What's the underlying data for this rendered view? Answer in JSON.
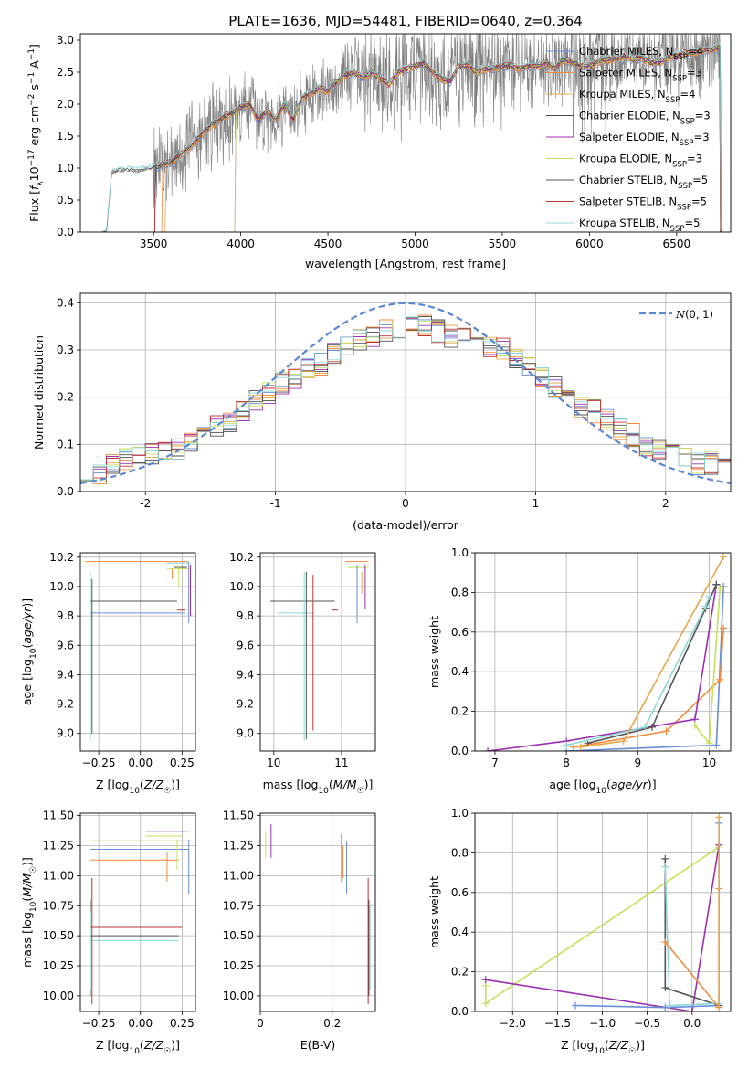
{
  "figure_title": "PLATE=1636, MJD=54481, FIBERID=0640, z=0.364",
  "colors": {
    "models": [
      "#6a8fd6",
      "#f08a3c",
      "#e6a84a",
      "#4a4a4a",
      "#9b30b0",
      "#c6e05a",
      "#555555",
      "#c03030",
      "#8fd6d6"
    ],
    "data": "#7f7f7f",
    "gauss": "#5b87d6"
  },
  "chart_data": [
    {
      "id": "spectrum",
      "type": "line",
      "title": "PLATE=1636, MJD=54481, FIBERID=0640, z=0.364",
      "xlabel": "wavelength [Angstrom, rest frame]",
      "ylabel": "Flux [f_λ 10^-17 erg cm^-2 s^-1 A^-1]",
      "xlim": [
        3080,
        6810
      ],
      "ylim": [
        0,
        3.1
      ],
      "xticks": [
        3500,
        4000,
        4500,
        5000,
        5500,
        6000,
        6500
      ],
      "yticks": [
        0.0,
        0.5,
        1.0,
        1.5,
        2.0,
        2.5,
        3.0
      ],
      "legend_position": "top-right",
      "legend": [
        "Chabrier MILES, N_SSP=4",
        "Salpeter MILES, N_SSP=3",
        "Kroupa MILES, N_SSP=4",
        "Chabrier ELODIE, N_SSP=3",
        "Salpeter ELODIE, N_SSP=3",
        "Kroupa ELODIE, N_SSP=3",
        "Chabrier STELIB, N_SSP=5",
        "Salpeter STELIB, N_SSP=5",
        "Kroupa STELIB, N_SSP=5"
      ],
      "model_continuum": {
        "x": [
          3200,
          3230,
          3260,
          3300,
          3350,
          3400,
          3450,
          3500,
          3550,
          3600,
          3650,
          3700,
          3750,
          3800,
          3850,
          3900,
          3950,
          4000,
          4050,
          4100,
          4150,
          4200,
          4250,
          4300,
          4350,
          4400,
          4450,
          4500,
          4550,
          4600,
          4650,
          4700,
          4750,
          4800,
          4850,
          4900,
          4950,
          5000,
          5050,
          5100,
          5150,
          5200,
          5250,
          5300,
          5350,
          5400,
          5450,
          5500,
          5550,
          5600,
          5650,
          5700,
          5750,
          5800,
          5850,
          5900,
          5950,
          6000,
          6050,
          6100,
          6150,
          6200,
          6250,
          6300,
          6350,
          6400,
          6450,
          6500,
          6550,
          6600,
          6650,
          6700,
          6750
        ],
        "y": [
          0.0,
          0.0,
          0.92,
          0.95,
          0.96,
          0.95,
          0.97,
          1.0,
          1.05,
          1.1,
          1.2,
          1.3,
          1.45,
          1.6,
          1.7,
          1.8,
          1.85,
          1.95,
          2.0,
          1.75,
          1.9,
          1.75,
          2.0,
          1.75,
          2.1,
          2.15,
          2.25,
          2.2,
          2.35,
          2.45,
          2.5,
          2.4,
          2.5,
          2.4,
          2.3,
          2.5,
          2.55,
          2.6,
          2.65,
          2.5,
          2.4,
          2.35,
          2.6,
          2.6,
          2.5,
          2.55,
          2.55,
          2.6,
          2.6,
          2.55,
          2.6,
          2.6,
          2.65,
          2.55,
          2.7,
          2.65,
          2.6,
          2.6,
          2.65,
          2.7,
          2.7,
          2.75,
          2.7,
          2.72,
          2.65,
          2.65,
          2.72,
          2.75,
          2.8,
          2.8,
          2.85,
          2.85,
          2.9
        ]
      }
    },
    {
      "id": "residuals",
      "type": "line",
      "xlabel": "(data-model)/error",
      "ylabel": "Normed distribution",
      "xlim": [
        -2.5,
        2.5
      ],
      "ylim": [
        0,
        0.42
      ],
      "xticks": [
        -2,
        -1,
        0,
        1,
        2
      ],
      "yticks": [
        0.0,
        0.1,
        0.2,
        0.3,
        0.4
      ],
      "legend_position": "top-right",
      "legend": [
        "N(0,1)"
      ],
      "bin_width": 0.1,
      "bin_start": -2.5,
      "hist_mean": [
        0.03,
        0.04,
        0.06,
        0.07,
        0.07,
        0.08,
        0.08,
        0.09,
        0.11,
        0.12,
        0.14,
        0.15,
        0.17,
        0.19,
        0.21,
        0.23,
        0.24,
        0.26,
        0.27,
        0.29,
        0.31,
        0.32,
        0.33,
        0.34,
        0.34,
        0.35,
        0.35,
        0.34,
        0.33,
        0.33,
        0.32,
        0.31,
        0.3,
        0.28,
        0.26,
        0.24,
        0.22,
        0.2,
        0.18,
        0.17,
        0.15,
        0.13,
        0.12,
        0.1,
        0.09,
        0.08,
        0.07,
        0.06,
        0.06,
        0.05
      ]
    },
    {
      "id": "age-vs-Z",
      "type": "scatter",
      "xlabel": "Z [log10(Z/Z☉)]",
      "ylabel": "age [log10(age/yr)]",
      "xlim": [
        -0.36,
        0.33
      ],
      "ylim": [
        8.88,
        10.23
      ],
      "xticks": [
        -0.25,
        0.0,
        0.25
      ],
      "xtick_labels": [
        "−0.25",
        "0.00",
        "0.25"
      ],
      "yticks": [
        9.0,
        9.2,
        9.4,
        9.6,
        9.8,
        10.0,
        10.2
      ],
      "hlines": [
        {
          "y": 10.17,
          "x0": -0.33,
          "x1": 0.29,
          "c": 1
        },
        {
          "y": 10.16,
          "x0": 0.16,
          "x1": 0.29,
          "c": 8
        },
        {
          "y": 10.12,
          "x0": 0.16,
          "x1": 0.29,
          "c": 5
        },
        {
          "y": 10.13,
          "x0": 0.2,
          "x1": 0.28,
          "c": 3
        },
        {
          "y": 9.9,
          "x0": -0.3,
          "x1": 0.22,
          "c": 6
        },
        {
          "y": 9.84,
          "x0": 0.22,
          "x1": 0.27,
          "c": 7
        },
        {
          "y": 9.82,
          "x0": -0.3,
          "x1": 0.27,
          "c": 0
        }
      ],
      "vlines": [
        {
          "x": -0.3,
          "y0": 8.95,
          "y1": 10.1,
          "c": 8
        },
        {
          "x": -0.29,
          "y0": 9.0,
          "y1": 10.05,
          "c": 6
        },
        {
          "x": 0.29,
          "y0": 9.75,
          "y1": 10.17,
          "c": 0
        },
        {
          "x": 0.3,
          "y0": 9.8,
          "y1": 10.15,
          "c": 4
        },
        {
          "x": 0.23,
          "y0": 10.0,
          "y1": 10.15,
          "c": 5
        },
        {
          "x": 0.19,
          "y0": 10.05,
          "y1": 10.12,
          "c": 1
        }
      ]
    },
    {
      "id": "age-vs-mass",
      "type": "scatter",
      "xlabel": "mass [log10(M/M☉)]",
      "xlim": [
        9.8,
        11.5
      ],
      "ylim": [
        8.88,
        10.23
      ],
      "xticks": [
        10,
        11
      ],
      "yticks": [
        9.0,
        9.2,
        9.4,
        9.6,
        9.8,
        10.0,
        10.2
      ],
      "hlines": [
        {
          "y": 10.17,
          "x0": 11.05,
          "x1": 11.4,
          "c": 1
        },
        {
          "y": 10.13,
          "x0": 11.1,
          "x1": 11.4,
          "c": 5
        },
        {
          "y": 9.9,
          "x0": 9.95,
          "x1": 10.9,
          "c": 6
        },
        {
          "y": 9.84,
          "x0": 10.85,
          "x1": 10.95,
          "c": 7
        },
        {
          "y": 9.82,
          "x0": 10.05,
          "x1": 10.6,
          "c": 8
        }
      ],
      "vlines": [
        {
          "x": 10.45,
          "y0": 8.95,
          "y1": 10.1,
          "c": 8
        },
        {
          "x": 10.48,
          "y0": 8.96,
          "y1": 10.1,
          "c": 6
        },
        {
          "x": 10.58,
          "y0": 9.02,
          "y1": 10.08,
          "c": 7
        },
        {
          "x": 11.23,
          "y0": 9.75,
          "y1": 10.15,
          "c": 0
        },
        {
          "x": 11.35,
          "y0": 9.85,
          "y1": 10.15,
          "c": 4
        },
        {
          "x": 11.3,
          "y0": 9.95,
          "y1": 10.1,
          "c": 2
        }
      ]
    },
    {
      "id": "weight-vs-age",
      "type": "line",
      "xlabel": "age [log10(age/yr)]",
      "ylabel": "mass weight",
      "xlim": [
        6.72,
        10.3
      ],
      "ylim": [
        0,
        1.0
      ],
      "xticks": [
        7,
        8,
        9,
        10
      ],
      "yticks": [
        0.0,
        0.2,
        0.4,
        0.6,
        0.8,
        1.0
      ],
      "series": [
        {
          "c": 0,
          "x": [
            8.0,
            10.1,
            10.2
          ],
          "y": [
            0.0,
            0.03,
            0.83
          ]
        },
        {
          "c": 1,
          "x": [
            8.1,
            9.4,
            10.15,
            10.2
          ],
          "y": [
            0.02,
            0.1,
            0.36,
            0.62
          ]
        },
        {
          "c": 4,
          "x": [
            6.9,
            8.0,
            9.8,
            10.1
          ],
          "y": [
            0.0,
            0.05,
            0.16,
            0.84
          ]
        },
        {
          "c": 5,
          "x": [
            9.8,
            10.0,
            10.15
          ],
          "y": [
            0.13,
            0.04,
            0.82
          ]
        },
        {
          "c": 6,
          "x": [
            8.3,
            9.2,
            9.95,
            10.1
          ],
          "y": [
            0.04,
            0.12,
            0.72,
            0.84
          ]
        },
        {
          "c": 8,
          "x": [
            8.0,
            9.1,
            9.95,
            10.0
          ],
          "y": [
            0.03,
            0.12,
            0.73,
            0.78
          ]
        },
        {
          "c": 2,
          "x": [
            8.2,
            8.8,
            10.2
          ],
          "y": [
            0.02,
            0.05,
            0.98
          ]
        }
      ]
    },
    {
      "id": "mass-vs-Z",
      "type": "scatter",
      "xlabel": "Z [log10(Z/Z☉)]",
      "ylabel": "mass [log10(M/M☉)]",
      "xlim": [
        -0.36,
        0.33
      ],
      "ylim": [
        9.87,
        11.52
      ],
      "xticks": [
        -0.25,
        0.0,
        0.25
      ],
      "xtick_labels": [
        "−0.25",
        "0.00",
        "0.25"
      ],
      "yticks": [
        10.0,
        10.25,
        10.5,
        10.75,
        11.0,
        11.25,
        11.5
      ],
      "ytick_labels": [
        "10.00",
        "10.25",
        "10.50",
        "10.75",
        "11.00",
        "11.25",
        "11.50"
      ],
      "hlines": [
        {
          "y": 11.37,
          "x0": 0.03,
          "x1": 0.29,
          "c": 4
        },
        {
          "y": 11.33,
          "x0": 0.03,
          "x1": 0.25,
          "c": 5
        },
        {
          "y": 11.29,
          "x0": -0.3,
          "x1": 0.3,
          "c": 2
        },
        {
          "y": 11.22,
          "x0": -0.3,
          "x1": 0.29,
          "c": 0
        },
        {
          "y": 11.13,
          "x0": -0.3,
          "x1": 0.23,
          "c": 1
        },
        {
          "y": 10.57,
          "x0": -0.3,
          "x1": 0.25,
          "c": 7
        },
        {
          "y": 10.5,
          "x0": -0.3,
          "x1": 0.23,
          "c": 6
        },
        {
          "y": 10.46,
          "x0": -0.3,
          "x1": 0.23,
          "c": 8
        }
      ],
      "vlines": [
        {
          "x": -0.29,
          "y0": 9.93,
          "y1": 10.98,
          "c": 7
        },
        {
          "x": -0.3,
          "y0": 10.0,
          "y1": 10.8,
          "c": 6
        },
        {
          "x": -0.3,
          "y0": 10.05,
          "y1": 10.7,
          "c": 8
        },
        {
          "x": 0.29,
          "y0": 10.85,
          "y1": 11.3,
          "c": 0
        },
        {
          "x": 0.22,
          "y0": 11.05,
          "y1": 11.3,
          "c": 5
        },
        {
          "x": 0.16,
          "y0": 10.95,
          "y1": 11.2,
          "c": 1
        }
      ]
    },
    {
      "id": "mass-vs-EBV",
      "type": "scatter",
      "xlabel": "E(B-V)",
      "xlim": [
        0.0,
        0.32
      ],
      "ylim": [
        9.87,
        11.52
      ],
      "xticks": [
        0.0,
        0.2
      ],
      "xtick_labels": [
        "0",
        "0.2"
      ],
      "yticks": [
        10.0,
        10.25,
        10.5,
        10.75,
        11.0,
        11.25,
        11.5
      ],
      "ytick_labels": [
        "10.00",
        "10.25",
        "10.50",
        "10.75",
        "11.00",
        "11.25",
        "11.50"
      ],
      "vlines": [
        {
          "x": 0.015,
          "y0": 11.15,
          "y1": 11.37,
          "c": 5
        },
        {
          "x": 0.03,
          "y0": 11.15,
          "y1": 11.43,
          "c": 4
        },
        {
          "x": 0.225,
          "y0": 10.95,
          "y1": 11.35,
          "c": 2
        },
        {
          "x": 0.23,
          "y0": 10.98,
          "y1": 11.25,
          "c": 1
        },
        {
          "x": 0.24,
          "y0": 10.85,
          "y1": 11.28,
          "c": 0
        },
        {
          "x": 0.3,
          "y0": 9.93,
          "y1": 10.98,
          "c": 7
        },
        {
          "x": 0.302,
          "y0": 10.0,
          "y1": 10.8,
          "c": 6
        },
        {
          "x": 0.305,
          "y0": 10.05,
          "y1": 10.75,
          "c": 8
        }
      ]
    },
    {
      "id": "weight-vs-Z",
      "type": "line",
      "xlabel": "Z [log10(Z/Z☉)]",
      "ylabel": "mass weight",
      "xlim": [
        -2.42,
        0.43
      ],
      "ylim": [
        0,
        1.0
      ],
      "xticks": [
        -2.0,
        -1.5,
        -1.0,
        -0.5,
        0.0
      ],
      "xtick_labels": [
        "−2.0",
        "−1.5",
        "−1.0",
        "−0.5",
        "0.0"
      ],
      "yticks": [
        0.0,
        0.2,
        0.4,
        0.6,
        0.8,
        1.0
      ],
      "series": [
        {
          "c": 5,
          "x": [
            -2.3,
            -2.3,
            0.3
          ],
          "y": [
            0.13,
            0.04,
            0.83
          ]
        },
        {
          "c": 4,
          "x": [
            -2.3,
            0.0,
            0.3
          ],
          "y": [
            0.16,
            0.0,
            0.84
          ]
        },
        {
          "c": 0,
          "x": [
            -1.3,
            -0.3,
            0.3,
            0.3
          ],
          "y": [
            0.03,
            0.02,
            0.03,
            0.95
          ]
        },
        {
          "c": 6,
          "x": [
            -0.3,
            -0.3,
            0.3
          ],
          "y": [
            0.77,
            0.12,
            0.03
          ]
        },
        {
          "c": 8,
          "x": [
            -0.3,
            -0.25,
            0.3
          ],
          "y": [
            0.73,
            0.03,
            0.04
          ]
        },
        {
          "c": 1,
          "x": [
            -0.3,
            0.3,
            0.3
          ],
          "y": [
            0.35,
            0.02,
            0.62
          ]
        },
        {
          "c": 2,
          "x": [
            0.3,
            0.3
          ],
          "y": [
            0.0,
            0.98
          ]
        }
      ]
    }
  ]
}
